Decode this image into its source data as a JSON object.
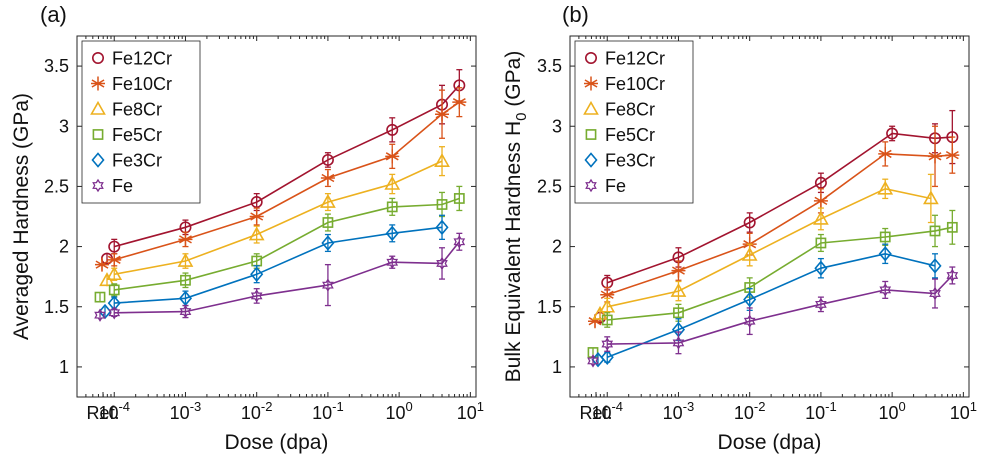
{
  "chart_data": [
    {
      "type": "line",
      "title": "(a)",
      "xlabel": "Dose (dpa)",
      "ylabel": "Averaged Hardness (GPa)",
      "xscale": "log",
      "xlim": [
        3e-05,
        12
      ],
      "ylim": [
        0.75,
        3.75
      ],
      "yticks": [
        1,
        1.5,
        2,
        2.5,
        3,
        3.5
      ],
      "xtick_labels": [
        {
          "label": "Ref.",
          "exp": ""
        },
        {
          "value": 0.0001,
          "label": "10",
          "exp": "-4"
        },
        {
          "value": 0.001,
          "label": "10",
          "exp": "-3"
        },
        {
          "value": 0.01,
          "label": "10",
          "exp": "-2"
        },
        {
          "value": 0.1,
          "label": "10",
          "exp": "-1"
        },
        {
          "value": 1,
          "label": "10",
          "exp": "0"
        },
        {
          "value": 10,
          "label": "10",
          "exp": "1"
        }
      ],
      "legend_position": "top-left",
      "series": [
        {
          "name": "Fe12Cr",
          "color": "#A2142F",
          "marker": "circle",
          "ref": {
            "y": 1.9,
            "err": 0.04
          },
          "x": [
            0.0001,
            0.001,
            0.01,
            0.1,
            0.8,
            4,
            7
          ],
          "y": [
            2.0,
            2.16,
            2.37,
            2.72,
            2.97,
            3.18,
            3.34
          ],
          "err": [
            0.06,
            0.06,
            0.07,
            0.06,
            0.1,
            0.16,
            0.13
          ]
        },
        {
          "name": "Fe10Cr",
          "color": "#D95319",
          "marker": "asterisk",
          "ref": {
            "y": 1.85,
            "err": 0.05
          },
          "x": [
            0.0001,
            0.001,
            0.01,
            0.1,
            0.8,
            4,
            7
          ],
          "y": [
            1.89,
            2.06,
            2.25,
            2.57,
            2.75,
            3.1,
            3.2
          ],
          "err": [
            0.05,
            0.06,
            0.07,
            0.07,
            0.1,
            0.2,
            0.12
          ]
        },
        {
          "name": "Fe8Cr",
          "color": "#EDB120",
          "marker": "triangle",
          "ref": {
            "y": 1.72,
            "err": 0.05
          },
          "x": [
            0.0001,
            0.001,
            0.01,
            0.1,
            0.8,
            4
          ],
          "y": [
            1.77,
            1.88,
            2.1,
            2.37,
            2.52,
            2.71
          ],
          "err": [
            0.05,
            0.06,
            0.07,
            0.07,
            0.08,
            0.12
          ]
        },
        {
          "name": "Fe5Cr",
          "color": "#77AC30",
          "marker": "square",
          "ref": {
            "y": 1.58,
            "err": 0.04
          },
          "x": [
            0.0001,
            0.001,
            0.01,
            0.1,
            0.8,
            4,
            7
          ],
          "y": [
            1.64,
            1.72,
            1.88,
            2.2,
            2.33,
            2.35,
            2.4
          ],
          "err": [
            0.05,
            0.06,
            0.06,
            0.07,
            0.07,
            0.1,
            0.1
          ]
        },
        {
          "name": "Fe3Cr",
          "color": "#0072BD",
          "marker": "diamond",
          "ref": {
            "y": 1.46,
            "err": 0.04
          },
          "x": [
            0.0001,
            0.001,
            0.01,
            0.1,
            0.8,
            4
          ],
          "y": [
            1.53,
            1.57,
            1.77,
            2.03,
            2.11,
            2.16
          ],
          "err": [
            0.05,
            0.06,
            0.07,
            0.07,
            0.07,
            0.1
          ]
        },
        {
          "name": "Fe",
          "color": "#7E2F8E",
          "marker": "hexagram",
          "ref": {
            "y": 1.43,
            "err": 0.04
          },
          "x": [
            0.0001,
            0.001,
            0.01,
            0.1,
            0.8,
            4,
            7
          ],
          "y": [
            1.45,
            1.46,
            1.59,
            1.68,
            1.87,
            1.86,
            2.04
          ],
          "err": [
            0.03,
            0.05,
            0.06,
            0.17,
            0.05,
            0.13,
            0.07
          ]
        }
      ]
    },
    {
      "type": "line",
      "title": "(b)",
      "xlabel": "Dose (dpa)",
      "ylabel": "Bulk Equivalent Hardness H",
      "ylabel_sub": "0",
      "ylabel_unit": " (GPa)",
      "xscale": "log",
      "xlim": [
        3e-05,
        12
      ],
      "ylim": [
        0.75,
        3.75
      ],
      "yticks": [
        1,
        1.5,
        2,
        2.5,
        3,
        3.5
      ],
      "xtick_labels": [
        {
          "label": "Ref.",
          "exp": ""
        },
        {
          "value": 0.0001,
          "label": "10",
          "exp": "-4"
        },
        {
          "value": 0.001,
          "label": "10",
          "exp": "-3"
        },
        {
          "value": 0.01,
          "label": "10",
          "exp": "-2"
        },
        {
          "value": 0.1,
          "label": "10",
          "exp": "-1"
        },
        {
          "value": 1,
          "label": "10",
          "exp": "0"
        },
        {
          "value": 10,
          "label": "10",
          "exp": "1"
        }
      ],
      "legend_position": "top-left",
      "series": [
        {
          "name": "Fe12Cr",
          "color": "#A2142F",
          "marker": "circle",
          "ref": {
            "y": 1.41,
            "err": 0.04
          },
          "x": [
            0.0001,
            0.001,
            0.01,
            0.1,
            1,
            4,
            7
          ],
          "y": [
            1.7,
            1.91,
            2.2,
            2.53,
            2.94,
            2.9,
            2.91
          ],
          "err": [
            0.06,
            0.08,
            0.08,
            0.08,
            0.06,
            0.12,
            0.22
          ]
        },
        {
          "name": "Fe10Cr",
          "color": "#D95319",
          "marker": "asterisk",
          "ref": {
            "y": 1.38,
            "err": 0.05
          },
          "x": [
            0.0001,
            0.001,
            0.01,
            0.1,
            0.8,
            4,
            7
          ],
          "y": [
            1.6,
            1.8,
            2.02,
            2.38,
            2.77,
            2.75,
            2.76
          ],
          "err": [
            0.06,
            0.08,
            0.09,
            0.1,
            0.1,
            0.25,
            0.15
          ]
        },
        {
          "name": "Fe8Cr",
          "color": "#EDB120",
          "marker": "triangle",
          "ref": {
            "y": 1.44,
            "err": 0.05
          },
          "x": [
            0.0001,
            0.001,
            0.01,
            0.1,
            0.8,
            3.5
          ],
          "y": [
            1.5,
            1.63,
            1.93,
            2.23,
            2.48,
            2.4
          ],
          "err": [
            0.07,
            0.08,
            0.09,
            0.09,
            0.08,
            0.2
          ]
        },
        {
          "name": "Fe5Cr",
          "color": "#77AC30",
          "marker": "square",
          "ref": {
            "y": 1.12,
            "err": 0.04
          },
          "x": [
            0.0001,
            0.001,
            0.01,
            0.1,
            0.8,
            4,
            7
          ],
          "y": [
            1.39,
            1.45,
            1.66,
            2.03,
            2.08,
            2.13,
            2.16
          ],
          "err": [
            0.06,
            0.07,
            0.08,
            0.07,
            0.07,
            0.13,
            0.14
          ]
        },
        {
          "name": "Fe3Cr",
          "color": "#0072BD",
          "marker": "diamond",
          "ref": {
            "y": 1.06,
            "err": 0.04
          },
          "x": [
            0.0001,
            0.001,
            0.01,
            0.1,
            0.8,
            4
          ],
          "y": [
            1.08,
            1.31,
            1.56,
            1.82,
            1.94,
            1.84
          ],
          "err": [
            0.04,
            0.09,
            0.09,
            0.08,
            0.08,
            0.1
          ]
        },
        {
          "name": "Fe",
          "color": "#7E2F8E",
          "marker": "hexagram",
          "ref": {
            "y": 1.05,
            "err": 0.04
          },
          "x": [
            0.0001,
            0.001,
            0.01,
            0.1,
            0.8,
            4,
            7
          ],
          "y": [
            1.19,
            1.2,
            1.38,
            1.52,
            1.64,
            1.61,
            1.76
          ],
          "err": [
            0.06,
            0.09,
            0.11,
            0.06,
            0.07,
            0.12,
            0.07
          ]
        }
      ]
    }
  ]
}
